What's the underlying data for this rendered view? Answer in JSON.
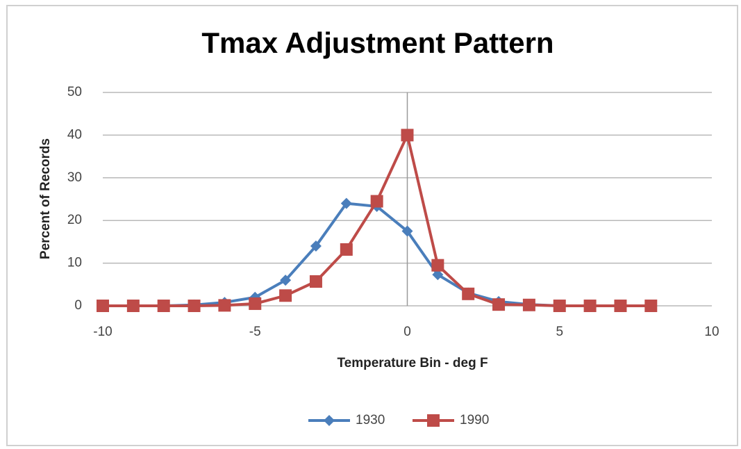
{
  "chart_data": {
    "type": "line",
    "title": "Tmax Adjustment Pattern",
    "x_label": "Temperature Bin - deg F",
    "y_label": "Percent of Records",
    "x": [
      -10,
      -9,
      -8,
      -7,
      -6,
      -5,
      -4,
      -3,
      -2,
      -1,
      0,
      1,
      2,
      3,
      4,
      5,
      6,
      7,
      8
    ],
    "series": [
      {
        "name": "1930",
        "color": "#4a7ebb",
        "marker": "diamond",
        "values": [
          0,
          0,
          0,
          0.2,
          0.8,
          2,
          6,
          14,
          24,
          23.3,
          17.5,
          7.3,
          3,
          1,
          0.3,
          0,
          0,
          0,
          0
        ]
      },
      {
        "name": "1990",
        "color": "#be4b48",
        "marker": "square",
        "values": [
          0,
          0,
          0,
          0,
          0.1,
          0.5,
          2.4,
          5.7,
          13.2,
          24.5,
          40,
          9.5,
          2.8,
          0.3,
          0.2,
          0,
          0,
          0,
          0
        ]
      }
    ],
    "xlim": [
      -10,
      10
    ],
    "xticks": [
      -10,
      -5,
      0,
      5,
      10
    ],
    "ylim": [
      0,
      50
    ],
    "yticks": [
      0,
      10,
      20,
      30,
      40,
      50
    ],
    "grid": true,
    "legend": "bottom"
  }
}
